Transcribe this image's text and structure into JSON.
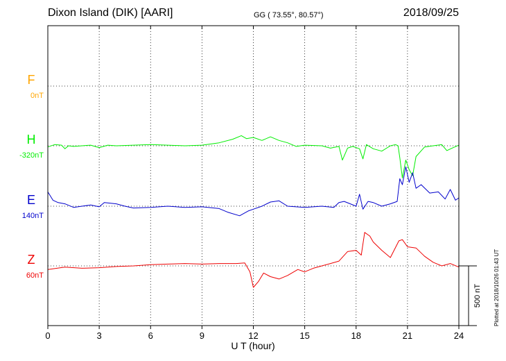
{
  "header": {
    "title": "Dixon Island (DIK)  [AARI]",
    "coordinates": "GG ( 73.55°,  80.57°)",
    "date": "2018/09/25"
  },
  "plotted_note": "Plotted at 2018/10/26 01:43 UT",
  "scale_label": "500 nT",
  "chart_data": {
    "type": "line",
    "xlabel": "U T (hour)",
    "xlim": [
      0,
      24
    ],
    "x_ticks": [
      "0",
      "3",
      "6",
      "9",
      "12",
      "15",
      "18",
      "21",
      "24"
    ],
    "scale_bar_nT": 500,
    "grid": true,
    "series": [
      {
        "name": "F",
        "baseline_label": "0nT",
        "color": "#ffa500",
        "t": [],
        "values": []
      },
      {
        "name": "H",
        "baseline_label": "-320nT",
        "color": "#00ee00",
        "t": [
          0,
          0.4,
          0.8,
          1.0,
          1.2,
          1.5,
          2,
          2.5,
          3.0,
          3.5,
          4,
          5,
          6,
          7,
          8,
          9,
          10,
          10.8,
          11.3,
          11.6,
          12.0,
          12.5,
          13.0,
          13.5,
          14.0,
          14.5,
          15,
          16,
          16.5,
          17,
          17.2,
          17.5,
          17.8,
          18.2,
          18.4,
          18.6,
          19,
          19.5,
          20,
          20.3,
          20.45,
          20.55,
          20.7,
          20.9,
          21.1,
          21.3,
          21.5,
          22,
          22.5,
          23,
          23.3,
          23.6,
          24
        ],
        "values": [
          -10,
          10,
          5,
          -25,
          0,
          -5,
          0,
          5,
          -15,
          5,
          0,
          5,
          10,
          5,
          0,
          5,
          25,
          55,
          85,
          60,
          70,
          45,
          75,
          45,
          25,
          -5,
          5,
          0,
          -20,
          -5,
          -120,
          -20,
          -5,
          -25,
          -110,
          10,
          -25,
          -45,
          0,
          10,
          0,
          -100,
          -270,
          -120,
          -200,
          -250,
          -90,
          -10,
          0,
          10,
          -40,
          -20,
          5
        ]
      },
      {
        "name": "E",
        "baseline_label": "140nT",
        "color": "#0000cc",
        "t": [
          0,
          0.3,
          0.6,
          1,
          1.5,
          2,
          2.5,
          3.0,
          3.3,
          4,
          4.5,
          5,
          6,
          7,
          8,
          9,
          10,
          10.5,
          11.2,
          11.7,
          12.0,
          12.5,
          13,
          13.5,
          14,
          15,
          16,
          16.7,
          17.0,
          17.3,
          18,
          18.2,
          18.4,
          18.7,
          19,
          19.5,
          20,
          20.4,
          20.55,
          20.7,
          20.9,
          21.1,
          21.3,
          21.5,
          21.8,
          22.3,
          22.8,
          23.2,
          23.5,
          23.8,
          24
        ],
        "values": [
          120,
          50,
          30,
          20,
          -10,
          0,
          10,
          -5,
          30,
          20,
          0,
          -15,
          -10,
          0,
          -10,
          -5,
          -20,
          -50,
          -80,
          -40,
          -25,
          0,
          35,
          45,
          0,
          -10,
          0,
          -10,
          30,
          40,
          0,
          100,
          -25,
          40,
          30,
          0,
          20,
          40,
          230,
          180,
          330,
          200,
          280,
          150,
          180,
          110,
          120,
          60,
          140,
          50,
          70
        ]
      },
      {
        "name": "Z",
        "baseline_label": "60nT",
        "color": "#ee0000",
        "t": [
          0,
          1,
          2,
          3,
          4,
          5,
          6,
          7,
          8,
          9,
          10,
          11,
          11.5,
          11.8,
          12.0,
          12.3,
          12.6,
          13.0,
          13.5,
          14,
          14.6,
          15,
          15.5,
          16,
          16.5,
          17,
          17.5,
          18,
          18.3,
          18.5,
          18.8,
          19,
          19.5,
          20,
          20.5,
          20.7,
          21,
          21.5,
          22,
          22.5,
          23,
          23.5,
          24
        ],
        "values": [
          -30,
          -10,
          -20,
          -15,
          -5,
          0,
          10,
          15,
          20,
          15,
          20,
          20,
          25,
          -50,
          -180,
          -130,
          -60,
          -90,
          -110,
          -80,
          -30,
          -50,
          -20,
          0,
          20,
          40,
          120,
          130,
          90,
          280,
          250,
          200,
          130,
          70,
          210,
          220,
          160,
          150,
          80,
          30,
          0,
          20,
          -10
        ]
      }
    ]
  }
}
